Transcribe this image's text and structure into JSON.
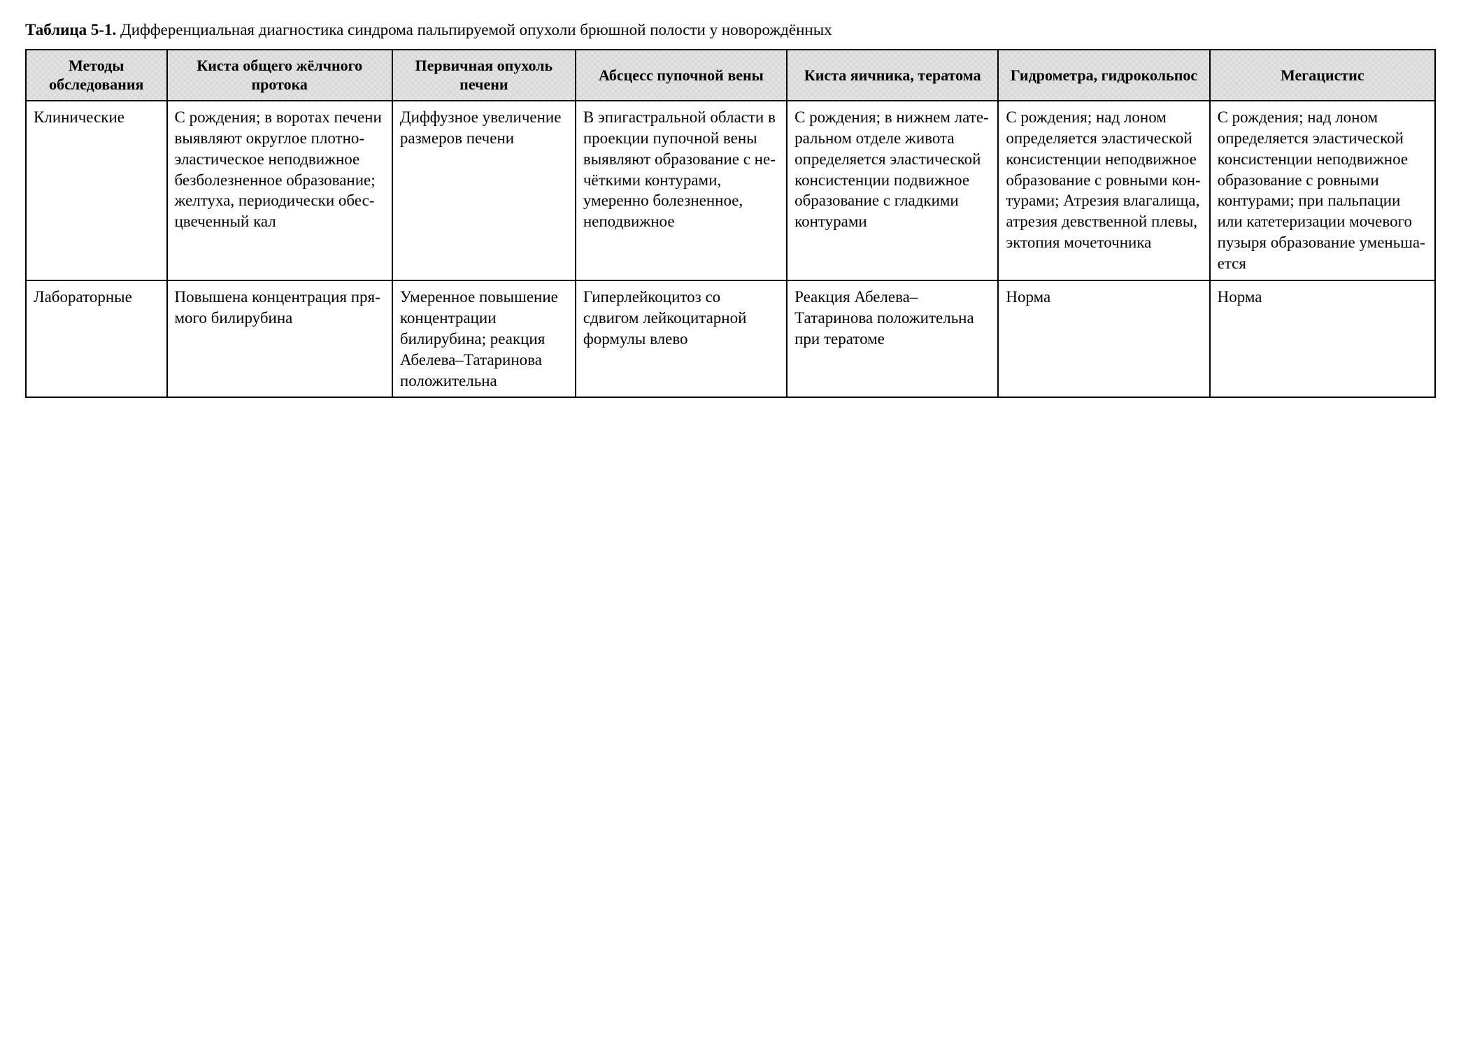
{
  "caption": {
    "label_bold": "Таблица 5-1.",
    "text": " Дифференциальная диагностика синдрома пальпируемой опухоли брюшной полости у новорождённых"
  },
  "table": {
    "type": "table",
    "columns": [
      "Методы обследова­ния",
      "Киста общего жёлчного протока",
      "Первичная опухоль печени",
      "Абсцесс пупочной вены",
      "Киста яичника, тератома",
      "Гидрометра, гидрокольпос",
      "Мегацистис"
    ],
    "col_widths_percent": [
      10,
      16,
      13,
      15,
      15,
      15,
      16
    ],
    "header_bg": "#e2e2e2",
    "border_color": "#000000",
    "text_color": "#000000",
    "background_color": "#ffffff",
    "font_size_pt": 17,
    "header_font_size_pt": 16,
    "rows": [
      {
        "label": "Клиничес­кие",
        "cells": [
          "С рождения; в воротах пече­ни выявляют округлое плот­но-эластическое неподвижное безболезненное образование; желтуха, перио­дически обес­цвеченный кал",
          "Диффузное увеличение размеров печени",
          "В эпигастраль­ной области в проекции пупочной вены выявляют обра­зование с не­чёткими конту­рами, умеренно болезненное, неподвижное",
          "С рождения; в нижнем лате­ральном отделе живота опре­деляется элас­тической кон­систенции под­вижное образо­вание с гладки­ми контурами",
          "С рождения; над лоном опре­деляется элас­тической кон­систенции неподвижное образование с ровными кон­турами; Атре­зия влагалища, атрезия девст­венной плевы, эктопия моче­точника",
          "С рождения; над лоном определя­ется эластической консистенции не­подвижное обра­зование с ровны­ми контурами; при пальпации или ка­тетеризации моче­вого пузыря обра­зование уменьша­ется"
        ]
      },
      {
        "label": "Лаборатор­ные",
        "cells": [
          "Повышена кон­центрация пря­мого билируби­на",
          "Умеренное повышение концентрации билирубина; реакция Абе­лева–Татари­нова положи­тельна",
          "Гиперлейкоци­тоз со сдвигом лейкоцитарной формулы влево",
          "Реакция Абеле­ва–Татаринова положительна при тератоме",
          "Норма",
          "Норма"
        ]
      }
    ]
  }
}
